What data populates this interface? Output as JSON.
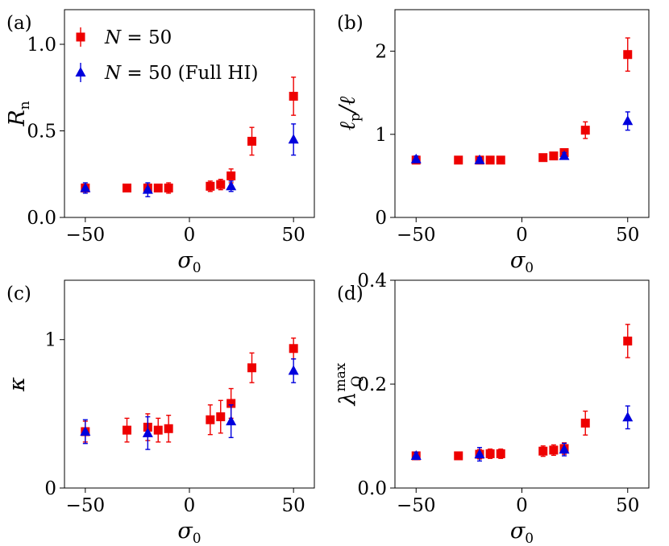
{
  "chart_data": [
    {
      "type": "scatter",
      "panel_label": "(a)",
      "xlabel": {
        "main": "σ",
        "sub": "0"
      },
      "ylabel": {
        "main": "R",
        "sub": "n"
      },
      "xlim": [
        -60,
        60
      ],
      "ylim": [
        0,
        1.2
      ],
      "xticks": [
        -50,
        0,
        50
      ],
      "xtick_labels": [
        "−50",
        "0",
        "50"
      ],
      "yticks": [
        0,
        0.5,
        1.0
      ],
      "ytick_labels": [
        "0.0",
        "0.5",
        "1.0"
      ],
      "legend": {
        "location": "top-left",
        "entries": [
          {
            "parts": [
              {
                "text": "N",
                "italic": true
              },
              {
                "text": " = 50",
                "italic": false
              }
            ]
          },
          {
            "parts": [
              {
                "text": "N",
                "italic": true
              },
              {
                "text": " = 50 (Full HI)",
                "italic": false
              }
            ]
          }
        ]
      },
      "series": [
        {
          "name": "N = 50",
          "marker": "square",
          "color": "#ee0000",
          "x": [
            -50,
            -30,
            -20,
            -15,
            -10,
            10,
            15,
            20,
            30,
            50
          ],
          "y": [
            0.17,
            0.17,
            0.17,
            0.17,
            0.17,
            0.18,
            0.19,
            0.24,
            0.44,
            0.7
          ],
          "err": [
            0.02,
            0.02,
            0.02,
            0.02,
            0.03,
            0.03,
            0.03,
            0.04,
            0.08,
            0.11
          ]
        },
        {
          "name": "N = 50 (Full HI)",
          "marker": "triangle",
          "color": "#0000dd",
          "x": [
            -50,
            -20,
            20,
            50
          ],
          "y": [
            0.17,
            0.16,
            0.18,
            0.45
          ],
          "err": [
            0.03,
            0.04,
            0.03,
            0.09
          ]
        }
      ]
    },
    {
      "type": "scatter",
      "panel_label": "(b)",
      "xlabel": {
        "main": "σ",
        "sub": "0"
      },
      "ylabel": {
        "main": "ℓ",
        "sub": "p",
        "suffix": "/ℓ"
      },
      "xlim": [
        -60,
        60
      ],
      "ylim": [
        0,
        2.5
      ],
      "xticks": [
        -50,
        0,
        50
      ],
      "xtick_labels": [
        "−50",
        "0",
        "50"
      ],
      "yticks": [
        0,
        1,
        2
      ],
      "ytick_labels": [
        "0",
        "1",
        "2"
      ],
      "series": [
        {
          "name": "N = 50",
          "marker": "square",
          "color": "#ee0000",
          "x": [
            -50,
            -30,
            -20,
            -15,
            -10,
            10,
            15,
            20,
            30,
            50
          ],
          "y": [
            0.69,
            0.69,
            0.69,
            0.69,
            0.69,
            0.72,
            0.74,
            0.78,
            1.05,
            1.96
          ],
          "err": [
            0.03,
            0.02,
            0.02,
            0.02,
            0.02,
            0.03,
            0.03,
            0.04,
            0.1,
            0.2
          ]
        },
        {
          "name": "N = 50 (Full HI)",
          "marker": "triangle",
          "color": "#0000dd",
          "x": [
            -50,
            -20,
            20,
            50
          ],
          "y": [
            0.7,
            0.69,
            0.74,
            1.16
          ],
          "err": [
            0.04,
            0.03,
            0.04,
            0.11
          ]
        }
      ]
    },
    {
      "type": "scatter",
      "panel_label": "(c)",
      "xlabel": {
        "main": "σ",
        "sub": "0"
      },
      "ylabel": {
        "main": "κ",
        "sub": ""
      },
      "xlim": [
        -60,
        60
      ],
      "ylim": [
        0,
        1.4
      ],
      "xticks": [
        -50,
        0,
        50
      ],
      "xtick_labels": [
        "−50",
        "0",
        "50"
      ],
      "yticks": [
        0,
        1
      ],
      "ytick_labels": [
        "0",
        "1"
      ],
      "series": [
        {
          "name": "N = 50",
          "marker": "square",
          "color": "#ee0000",
          "x": [
            -50,
            -30,
            -20,
            -15,
            -10,
            10,
            15,
            20,
            30,
            50
          ],
          "y": [
            0.38,
            0.39,
            0.41,
            0.39,
            0.4,
            0.46,
            0.48,
            0.57,
            0.81,
            0.94
          ],
          "err": [
            0.07,
            0.08,
            0.09,
            0.08,
            0.09,
            0.1,
            0.11,
            0.1,
            0.1,
            0.07
          ]
        },
        {
          "name": "N = 50 (Full HI)",
          "marker": "triangle",
          "color": "#0000dd",
          "x": [
            -50,
            -20,
            20,
            50
          ],
          "y": [
            0.38,
            0.37,
            0.45,
            0.79
          ],
          "err": [
            0.08,
            0.11,
            0.11,
            0.08
          ]
        }
      ]
    },
    {
      "type": "scatter",
      "panel_label": "(d)",
      "xlabel": {
        "main": "σ",
        "sub": "0"
      },
      "ylabel": {
        "main": "λ",
        "sub": "Q",
        "sup": "max"
      },
      "xlim": [
        -60,
        60
      ],
      "ylim": [
        0,
        0.4
      ],
      "xticks": [
        -50,
        0,
        50
      ],
      "xtick_labels": [
        "−50",
        "0",
        "50"
      ],
      "yticks": [
        0,
        0.2,
        0.4
      ],
      "ytick_labels": [
        "0.0",
        "0.2",
        "0.4"
      ],
      "series": [
        {
          "name": "N = 50",
          "marker": "square",
          "color": "#ee0000",
          "x": [
            -50,
            -30,
            -20,
            -15,
            -10,
            10,
            15,
            20,
            30,
            50
          ],
          "y": [
            0.062,
            0.062,
            0.065,
            0.066,
            0.066,
            0.071,
            0.073,
            0.076,
            0.125,
            0.283
          ],
          "err": [
            0.006,
            0.007,
            0.009,
            0.009,
            0.009,
            0.01,
            0.01,
            0.011,
            0.023,
            0.032
          ]
        },
        {
          "name": "N = 50 (Full HI)",
          "marker": "triangle",
          "color": "#0000dd",
          "x": [
            -50,
            -20,
            20,
            50
          ],
          "y": [
            0.062,
            0.065,
            0.074,
            0.136
          ],
          "err": [
            0.007,
            0.013,
            0.012,
            0.022
          ]
        }
      ]
    }
  ]
}
